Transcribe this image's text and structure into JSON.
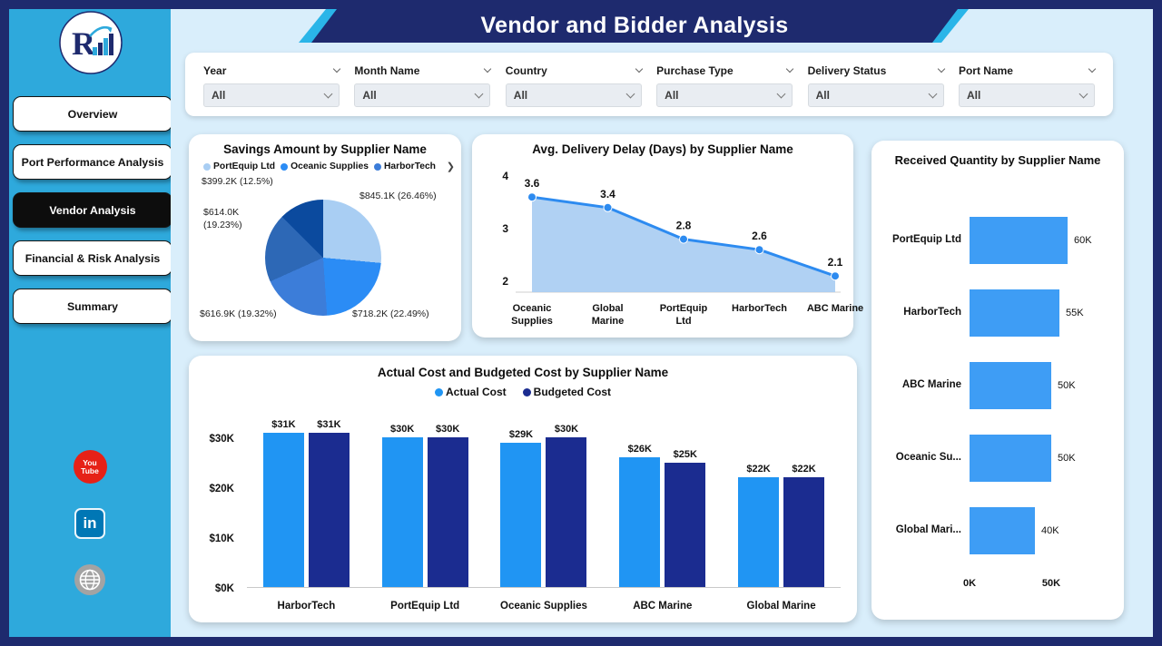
{
  "app": {
    "title": "Vendor and Bidder Analysis"
  },
  "theme": {
    "sidebar": "#2EA9DC",
    "banner_navy": "#1E2A6E",
    "banner_cyan": "#2AB5E8",
    "page_background": "#D9EEFB",
    "accent_blue": "#2095F3"
  },
  "sidebar": {
    "nav": [
      {
        "label": "Overview",
        "active": false
      },
      {
        "label": "Port Performance Analysis",
        "active": false
      },
      {
        "label": "Vendor Analysis",
        "active": true
      },
      {
        "label": "Financial & Risk Analysis",
        "active": false
      },
      {
        "label": "Summary",
        "active": false
      }
    ],
    "social": [
      {
        "id": "youtube",
        "lines": [
          "You",
          "Tube"
        ]
      },
      {
        "id": "linkedin",
        "label": "in"
      },
      {
        "id": "website"
      }
    ]
  },
  "filters": {
    "items": [
      {
        "label": "Year",
        "value": "All"
      },
      {
        "label": "Month Name",
        "value": "All"
      },
      {
        "label": "Country",
        "value": "All"
      },
      {
        "label": "Purchase Type",
        "value": "All"
      },
      {
        "label": "Delivery Status",
        "value": "All"
      },
      {
        "label": "Port Name",
        "value": "All"
      }
    ]
  },
  "chart_data": {
    "savings_pie": {
      "type": "pie",
      "title": "Savings Amount by Supplier Name",
      "legend_visible": [
        "PortEquip Ltd",
        "Oceanic Supplies",
        "HarborTech"
      ],
      "legend_scroll_arrow": "❯",
      "slices": [
        {
          "name": "PortEquip Ltd",
          "label": "$845.1K (26.46%)",
          "value_k": 845.1,
          "pct": 26.46,
          "color": "#A9CEF3"
        },
        {
          "name": "Oceanic Supplies",
          "label": "$718.2K (22.49%)",
          "value_k": 718.2,
          "pct": 22.49,
          "color": "#2B8CF5"
        },
        {
          "name": "HarborTech",
          "label": "$616.9K (19.32%)",
          "value_k": 616.9,
          "pct": 19.32,
          "color": "#3C7DD9"
        },
        {
          "label": "$614.0K (19.23%)",
          "value_k": 614.0,
          "pct": 19.23,
          "color": "#2D68B6"
        },
        {
          "label": "$399.2K (12.5%)",
          "value_k": 399.2,
          "pct": 12.5,
          "color": "#0B4A9E"
        }
      ]
    },
    "delivery_delay": {
      "type": "area",
      "title": "Avg. Delivery Delay (Days) by Supplier Name",
      "categories": [
        "Oceanic Supplies",
        "Global Marine",
        "PortEquip Ltd",
        "HarborTech",
        "ABC Marine"
      ],
      "values": [
        3.6,
        3.4,
        2.8,
        2.6,
        2.1
      ],
      "y_ticks": [
        4,
        3,
        2
      ],
      "ylim": [
        2,
        4
      ],
      "line_color": "#2D8BF0",
      "fill_color": "#A9CDF2"
    },
    "received_quantity": {
      "type": "bar-horizontal",
      "title": "Received Quantity by Supplier Name",
      "categories": [
        "PortEquip Ltd",
        "HarborTech",
        "ABC Marine",
        "Oceanic Su...",
        "Global Mari..."
      ],
      "values_k": [
        60,
        55,
        50,
        50,
        40
      ],
      "value_labels": [
        "60K",
        "55K",
        "50K",
        "50K",
        "40K"
      ],
      "x_ticks": [
        {
          "label": "0K",
          "value_k": 0
        },
        {
          "label": "50K",
          "value_k": 50
        }
      ],
      "bar_color": "#3E9DF5"
    },
    "cost_comparison": {
      "type": "bar-grouped",
      "title": "Actual Cost and Budgeted Cost by Supplier Name",
      "categories": [
        "HarborTech",
        "PortEquip Ltd",
        "Oceanic Supplies",
        "ABC Marine",
        "Global Marine"
      ],
      "series": [
        {
          "name": "Actual Cost",
          "color": "#2095F3",
          "values_k": [
            31,
            30,
            29,
            26,
            22
          ],
          "labels": [
            "$31K",
            "$30K",
            "$29K",
            "$26K",
            "$22K"
          ]
        },
        {
          "name": "Budgeted Cost",
          "color": "#1B2C90",
          "values_k": [
            31,
            30,
            30,
            25,
            22
          ],
          "labels": [
            "$31K",
            "$30K",
            "$30K",
            "$25K",
            "$22K"
          ]
        }
      ],
      "y_ticks": [
        {
          "label": "$30K",
          "value_k": 30
        },
        {
          "label": "$20K",
          "value_k": 20
        },
        {
          "label": "$10K",
          "value_k": 10
        },
        {
          "label": "$0K",
          "value_k": 0
        }
      ],
      "ylim_k": [
        0,
        33
      ]
    }
  }
}
